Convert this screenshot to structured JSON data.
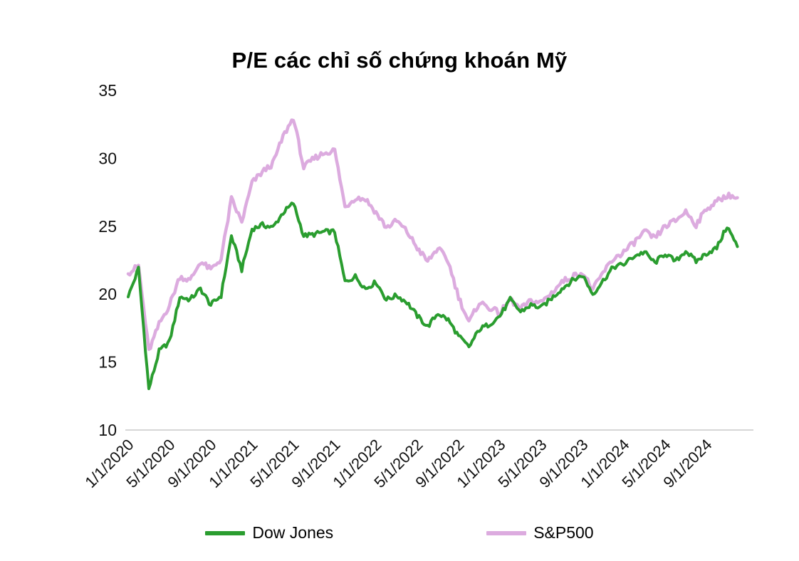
{
  "chart_data": {
    "type": "line",
    "title": "P/E các chỉ số chứng khoán Mỹ",
    "xlabel": "",
    "ylabel": "",
    "ylim": [
      10,
      35
    ],
    "y_ticks": [
      10,
      15,
      20,
      25,
      30,
      35
    ],
    "x_start": "2020-01",
    "x_step_months": 1,
    "x_count": 60,
    "x_tick_interval_months": 4,
    "x_tick_labels": [
      "1/1/2020",
      "5/1/2020",
      "9/1/2020",
      "1/1/2021",
      "5/1/2021",
      "9/1/2021",
      "1/1/2022",
      "5/1/2022",
      "9/1/2022",
      "1/1/2023",
      "5/1/2023",
      "9/1/2023",
      "1/1/2024",
      "5/1/2024",
      "9/1/2024"
    ],
    "grid": false,
    "legend_position": "bottom",
    "axis_line_color": "#d6d6d6",
    "series": [
      {
        "name": "Dow Jones",
        "color": "#2a9d2f",
        "values": [
          19.8,
          21.9,
          13.0,
          15.8,
          16.5,
          19.8,
          19.6,
          20.4,
          19.2,
          19.9,
          24.3,
          21.8,
          24.8,
          25.1,
          24.9,
          26.0,
          26.7,
          24.3,
          24.4,
          24.6,
          24.6,
          20.9,
          21.3,
          20.4,
          20.9,
          19.6,
          19.9,
          19.4,
          18.4,
          17.6,
          18.6,
          18.1,
          16.9,
          16.1,
          17.4,
          17.8,
          18.4,
          19.6,
          18.7,
          19.2,
          19.0,
          19.7,
          20.4,
          21.0,
          21.4,
          20.0,
          21.0,
          22.0,
          22.2,
          22.8,
          23.1,
          22.3,
          23.0,
          22.4,
          23.2,
          22.4,
          23.0,
          23.4,
          25.0,
          23.5
        ]
      },
      {
        "name": "S&P500",
        "color": "#dcabdf",
        "values": [
          21.5,
          22.1,
          15.8,
          17.8,
          19.2,
          21.3,
          21.0,
          22.4,
          21.8,
          22.6,
          27.0,
          25.3,
          28.2,
          29.0,
          29.6,
          31.6,
          33.0,
          29.3,
          30.0,
          30.4,
          30.6,
          26.4,
          27.1,
          27.0,
          26.0,
          24.9,
          25.4,
          24.6,
          23.4,
          22.4,
          23.4,
          22.4,
          19.8,
          17.9,
          19.4,
          19.0,
          18.6,
          19.6,
          18.9,
          19.5,
          19.4,
          20.1,
          20.9,
          21.3,
          21.6,
          20.3,
          21.6,
          22.6,
          23.1,
          23.8,
          24.6,
          24.1,
          25.0,
          25.4,
          26.1,
          25.1,
          26.3,
          26.8,
          27.3,
          27.1
        ]
      }
    ]
  }
}
